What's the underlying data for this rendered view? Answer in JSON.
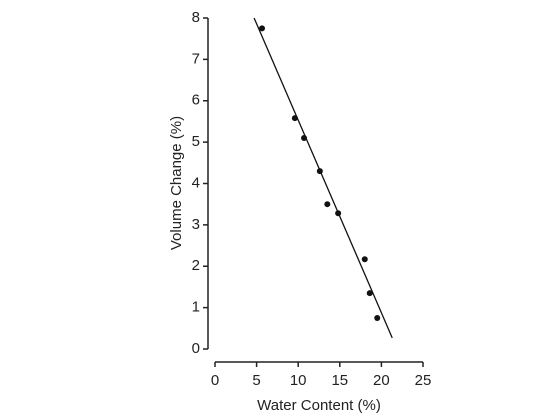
{
  "chart_data": {
    "type": "scatter",
    "x_label": "Water Content (%)",
    "y_label": "Volume Change (%)",
    "series": [
      {
        "color": "#111111",
        "x": [
          5.65,
          9.6,
          10.7,
          12.6,
          13.5,
          14.8,
          18.0,
          18.6,
          19.5
        ],
        "y": [
          7.75,
          5.58,
          5.1,
          4.3,
          3.5,
          3.28,
          2.17,
          1.35,
          0.75
        ]
      }
    ],
    "trend_line": {
      "color": "#111111",
      "x": [
        4.7,
        21.3
      ],
      "y": [
        8,
        0.27
      ]
    },
    "xlim": [
      0,
      25
    ],
    "xticks": [
      0,
      5,
      10,
      15,
      20,
      25
    ],
    "ylim": [
      0,
      8
    ],
    "yticks": [
      0,
      1,
      2,
      3,
      4,
      5,
      6,
      7,
      8
    ],
    "grid": false
  }
}
